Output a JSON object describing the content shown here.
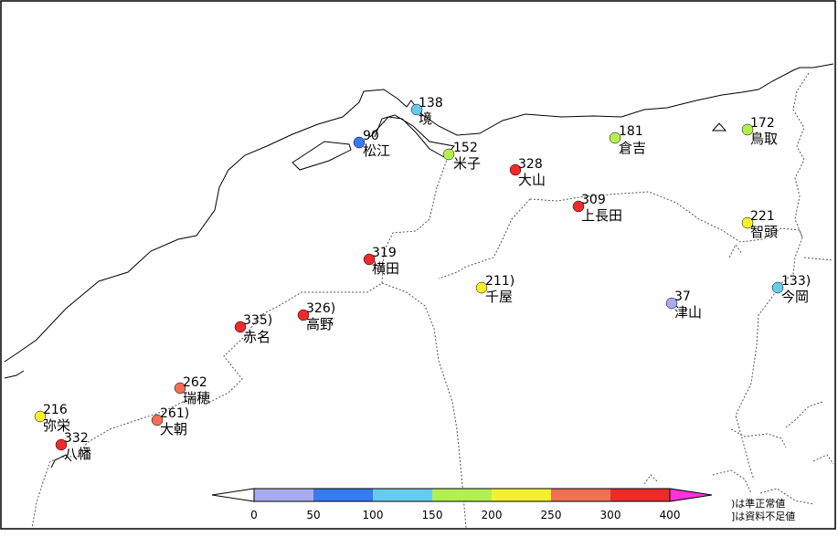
{
  "stations": [
    {
      "id": "sakai",
      "name": "境",
      "value": "138",
      "color": "#66ccee"
    },
    {
      "id": "matsue",
      "name": "松江",
      "value": "90",
      "color": "#3a7af0"
    },
    {
      "id": "yonago",
      "name": "米子",
      "value": "152",
      "color": "#b2f050"
    },
    {
      "id": "daisen",
      "name": "大山",
      "value": "328",
      "color": "#ee2a2a"
    },
    {
      "id": "kurayoshi",
      "name": "倉吉",
      "value": "181",
      "color": "#b2f050"
    },
    {
      "id": "tottori",
      "name": "鳥取",
      "value": "172",
      "color": "#b2f050"
    },
    {
      "id": "kaminagata",
      "name": "上長田",
      "value": "309",
      "color": "#ee2a2a"
    },
    {
      "id": "chizu",
      "name": "智頭",
      "value": "221",
      "color": "#f5f02c"
    },
    {
      "id": "yokota",
      "name": "横田",
      "value": "319",
      "color": "#ee2a2a"
    },
    {
      "id": "chiya",
      "name": "千屋",
      "value": "211)",
      "color": "#f5f02c"
    },
    {
      "id": "tsuyama",
      "name": "津山",
      "value": "37",
      "color": "#aaaaee"
    },
    {
      "id": "imaoka",
      "name": "今岡",
      "value": "133)",
      "color": "#66ccee"
    },
    {
      "id": "takano",
      "name": "高野",
      "value": "326)",
      "color": "#ee2a2a"
    },
    {
      "id": "akana",
      "name": "赤名",
      "value": "335)",
      "color": "#ee2a2a"
    },
    {
      "id": "mizuho",
      "name": "瑞穂",
      "value": "262",
      "color": "#f07055"
    },
    {
      "id": "oasa",
      "name": "大朝",
      "value": "261)",
      "color": "#f07055"
    },
    {
      "id": "yasaka",
      "name": "弥栄",
      "value": "216",
      "color": "#f5f02c"
    },
    {
      "id": "yawata",
      "name": "八幡",
      "value": "332",
      "color": "#ee2a2a"
    }
  ],
  "colorbar": {
    "colors": [
      "#aaaaee",
      "#3a7af0",
      "#66ccee",
      "#b2f050",
      "#f5f02c",
      "#f07055",
      "#ee2a2a"
    ],
    "under_color": "#ffffff",
    "over_color": "#ff33dd",
    "ticks": [
      "0",
      "50",
      "100",
      "150",
      "200",
      "250",
      "300",
      "400"
    ]
  },
  "notes": {
    "line1": ")は準正常値",
    "line2": "]は資料不足値"
  }
}
